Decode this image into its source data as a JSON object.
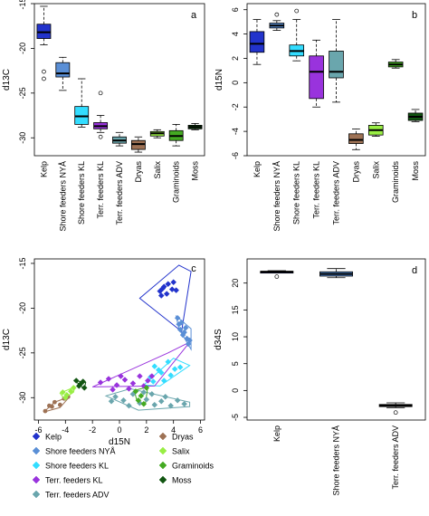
{
  "colors": {
    "Kelp": "#2233cc",
    "Shore feeders NYÅ": "#5a8fd6",
    "Shore feeders KL": "#33ddff",
    "Terr. feeders KL": "#9933dd",
    "Terr. feeders ADV": "#6aa6ad",
    "Dryas": "#9e7255",
    "Salix": "#99ee44",
    "Graminoids": "#44aa22",
    "Moss": "#115511"
  },
  "chart_data": [
    {
      "type": "box",
      "panel_label": "a",
      "ylabel": "d13C",
      "ylim": [
        -32,
        -15
      ],
      "yticks": [
        -30,
        -25,
        -20,
        -15
      ],
      "categories": [
        "Kelp",
        "Shore feeders NYÅ",
        "Shore feeders KL",
        "Terr. feeders KL",
        "Terr. feeders ADV",
        "Dryas",
        "Salix",
        "Graminoids",
        "Moss"
      ],
      "boxes": [
        {
          "min": -19.6,
          "q1": -18.9,
          "median": -18.2,
          "q3": -17.3,
          "max": -15.3,
          "outliers": [
            -22.6,
            -23.4
          ]
        },
        {
          "min": -24.7,
          "q1": -23.2,
          "median": -22.8,
          "q3": -21.6,
          "max": -21.0,
          "outliers": []
        },
        {
          "min": -28.8,
          "q1": -28.5,
          "median": -27.6,
          "q3": -26.5,
          "max": -23.4,
          "outliers": []
        },
        {
          "min": -29.4,
          "q1": -29.0,
          "median": -28.7,
          "q3": -28.3,
          "max": -27.5,
          "outliers": [
            -25.0,
            -29.9
          ]
        },
        {
          "min": -30.9,
          "q1": -30.6,
          "median": -30.3,
          "q3": -29.9,
          "max": -29.4,
          "outliers": []
        },
        {
          "min": -31.6,
          "q1": -31.3,
          "median": -30.7,
          "q3": -30.3,
          "max": -29.9,
          "outliers": []
        },
        {
          "min": -30.0,
          "q1": -29.8,
          "median": -29.5,
          "q3": -29.3,
          "max": -29.1,
          "outliers": []
        },
        {
          "min": -30.9,
          "q1": -30.3,
          "median": -29.8,
          "q3": -29.2,
          "max": -28.5,
          "outliers": []
        },
        {
          "min": -29.1,
          "q1": -29.0,
          "median": -28.8,
          "q3": -28.6,
          "max": -28.4,
          "outliers": []
        }
      ]
    },
    {
      "type": "box",
      "panel_label": "b",
      "ylabel": "d15N",
      "ylim": [
        -6,
        6.5
      ],
      "yticks": [
        -6,
        -4,
        -2,
        0,
        2,
        4,
        6
      ],
      "categories": [
        "Kelp",
        "Shore feeders NYÅ",
        "Shore feeders KL",
        "Terr. feeders KL",
        "Terr. feeders ADV",
        "Dryas",
        "Salix",
        "Graminoids",
        "Moss"
      ],
      "boxes": [
        {
          "min": 1.5,
          "q1": 2.5,
          "median": 3.2,
          "q3": 4.2,
          "max": 5.2,
          "outliers": []
        },
        {
          "min": 4.3,
          "q1": 4.5,
          "median": 4.7,
          "q3": 4.9,
          "max": 5.1,
          "outliers": [
            5.6
          ]
        },
        {
          "min": 1.8,
          "q1": 2.2,
          "median": 2.6,
          "q3": 3.1,
          "max": 5.2,
          "outliers": [
            5.9
          ]
        },
        {
          "min": -2.0,
          "q1": -1.3,
          "median": 0.9,
          "q3": 2.2,
          "max": 3.5,
          "outliers": []
        },
        {
          "min": -1.6,
          "q1": 0.4,
          "median": 0.9,
          "q3": 2.6,
          "max": 5.2,
          "outliers": []
        },
        {
          "min": -5.5,
          "q1": -5.0,
          "median": -4.7,
          "q3": -4.2,
          "max": -3.8,
          "outliers": []
        },
        {
          "min": -4.4,
          "q1": -4.3,
          "median": -3.9,
          "q3": -3.5,
          "max": -3.3,
          "outliers": []
        },
        {
          "min": 1.2,
          "q1": 1.3,
          "median": 1.5,
          "q3": 1.7,
          "max": 1.9,
          "outliers": []
        },
        {
          "min": -3.2,
          "q1": -3.1,
          "median": -2.8,
          "q3": -2.5,
          "max": -2.2,
          "outliers": []
        }
      ]
    },
    {
      "type": "scatter",
      "panel_label": "c",
      "xlabel": "d15N",
      "ylabel": "d13C",
      "xlim": [
        -6.3,
        6.3
      ],
      "ylim": [
        -32.5,
        -14.5
      ],
      "xticks": [
        -6,
        -4,
        -2,
        0,
        2,
        4,
        6
      ],
      "yticks": [
        -30,
        -25,
        -20,
        -15
      ],
      "series": [
        {
          "name": "Kelp",
          "marker": "diamond",
          "points": [
            [
              3.0,
              -18.1
            ],
            [
              3.3,
              -17.6
            ],
            [
              3.6,
              -17.3
            ],
            [
              3.9,
              -17.9
            ],
            [
              3.1,
              -18.6
            ],
            [
              3.5,
              -18.4
            ],
            [
              4.0,
              -17.1
            ],
            [
              3.2,
              -17.8
            ],
            [
              4.2,
              -18.0
            ]
          ],
          "hull": [
            [
              4.4,
              -15.2
            ],
            [
              5.3,
              -15.9
            ],
            [
              4.6,
              -22.6
            ],
            [
              1.5,
              -18.9
            ]
          ]
        },
        {
          "name": "Shore feeders NYÅ",
          "marker": "diamond",
          "points": [
            [
              4.3,
              -21.1
            ],
            [
              4.6,
              -21.6
            ],
            [
              4.9,
              -22.2
            ],
            [
              4.7,
              -23.0
            ],
            [
              5.0,
              -23.4
            ],
            [
              4.5,
              -22.4
            ],
            [
              5.1,
              -24.0
            ],
            [
              4.4,
              -21.8
            ],
            [
              4.8,
              -22.7
            ],
            [
              5.2,
              -23.6
            ]
          ],
          "hull": [
            [
              4.2,
              -20.9
            ],
            [
              5.3,
              -22.3
            ],
            [
              5.3,
              -24.6
            ],
            [
              4.4,
              -22.3
            ]
          ]
        },
        {
          "name": "Shore feeders KL",
          "marker": "diamond",
          "points": [
            [
              2.6,
              -26.5
            ],
            [
              3.1,
              -27.2
            ],
            [
              2.3,
              -27.7
            ],
            [
              3.6,
              -26.0
            ],
            [
              4.1,
              -26.8
            ],
            [
              2.9,
              -26.9
            ],
            [
              3.3,
              -28.1
            ],
            [
              4.5,
              -26.6
            ],
            [
              3.8,
              -27.5
            ],
            [
              2.5,
              -28.2
            ]
          ],
          "hull": [
            [
              1.8,
              -28.6
            ],
            [
              4.0,
              -25.6
            ],
            [
              5.2,
              -26.4
            ],
            [
              3.0,
              -28.7
            ]
          ]
        },
        {
          "name": "Terr. feeders KL",
          "marker": "diamond",
          "points": [
            [
              -1.4,
              -28.3
            ],
            [
              -0.8,
              -27.9
            ],
            [
              -0.2,
              -28.6
            ],
            [
              0.4,
              -28.0
            ],
            [
              1.0,
              -28.4
            ],
            [
              1.5,
              -27.6
            ],
            [
              2.1,
              -28.1
            ],
            [
              0.7,
              -29.0
            ],
            [
              -0.5,
              -29.1
            ],
            [
              1.8,
              -28.7
            ],
            [
              2.4,
              -27.6
            ],
            [
              0.1,
              -27.6
            ]
          ],
          "hull": [
            [
              -2.0,
              -28.8
            ],
            [
              3.6,
              -25.0
            ],
            [
              5.2,
              -23.8
            ],
            [
              2.6,
              -28.7
            ]
          ]
        },
        {
          "name": "Terr. feeders ADV",
          "marker": "diamond",
          "points": [
            [
              -0.3,
              -29.9
            ],
            [
              0.3,
              -30.3
            ],
            [
              1.0,
              -29.6
            ],
            [
              1.5,
              -30.6
            ],
            [
              2.0,
              -30.2
            ],
            [
              2.6,
              -30.8
            ],
            [
              3.1,
              -30.4
            ],
            [
              3.8,
              -30.9
            ],
            [
              4.3,
              -30.3
            ],
            [
              4.8,
              -30.7
            ],
            [
              0.7,
              -30.9
            ],
            [
              1.8,
              -29.4
            ],
            [
              2.4,
              -29.6
            ],
            [
              3.4,
              -29.9
            ],
            [
              -0.6,
              -30.4
            ]
          ],
          "hull": [
            [
              -1.0,
              -29.8
            ],
            [
              0.8,
              -29.0
            ],
            [
              5.2,
              -30.5
            ],
            [
              5.2,
              -31.0
            ],
            [
              1.4,
              -31.4
            ]
          ]
        },
        {
          "name": "Dryas",
          "marker": "circle",
          "points": [
            [
              -5.5,
              -31.5
            ],
            [
              -5.0,
              -31.0
            ],
            [
              -4.8,
              -30.5
            ],
            [
              -4.4,
              -30.8
            ],
            [
              -4.1,
              -30.1
            ],
            [
              -3.8,
              -29.9
            ],
            [
              -5.2,
              -30.9
            ]
          ],
          "hull": [
            [
              -5.6,
              -31.6
            ],
            [
              -4.8,
              -30.5
            ],
            [
              -3.7,
              -29.9
            ],
            [
              -4.4,
              -31.1
            ]
          ]
        },
        {
          "name": "Salix",
          "marker": "diamond",
          "points": [
            [
              -4.2,
              -29.4
            ],
            [
              -3.9,
              -29.7
            ],
            [
              -3.6,
              -29.3
            ],
            [
              -3.4,
              -28.9
            ],
            [
              -4.0,
              -30.0
            ]
          ],
          "hull": [
            [
              -4.4,
              -29.5
            ],
            [
              -3.3,
              -28.8
            ],
            [
              -3.4,
              -29.4
            ],
            [
              -4.1,
              -30.1
            ]
          ]
        },
        {
          "name": "Graminoids",
          "marker": "diamond",
          "points": [
            [
              1.2,
              -29.3
            ],
            [
              1.6,
              -29.8
            ],
            [
              2.0,
              -28.9
            ],
            [
              1.4,
              -30.3
            ],
            [
              1.8,
              -30.7
            ]
          ],
          "hull": [
            [
              1.1,
              -29.2
            ],
            [
              2.1,
              -28.8
            ],
            [
              1.9,
              -30.8
            ],
            [
              1.3,
              -30.4
            ]
          ]
        },
        {
          "name": "Moss",
          "marker": "diamond",
          "points": [
            [
              -3.2,
              -28.1
            ],
            [
              -2.9,
              -28.5
            ],
            [
              -2.6,
              -28.9
            ],
            [
              -2.7,
              -28.2
            ],
            [
              -3.0,
              -28.7
            ]
          ],
          "hull": [
            [
              -3.3,
              -28.1
            ],
            [
              -2.5,
              -28.3
            ],
            [
              -2.6,
              -29.0
            ]
          ]
        }
      ]
    },
    {
      "type": "box",
      "panel_label": "d",
      "ylabel": "d34S",
      "ylim": [
        -5.5,
        24.5
      ],
      "yticks": [
        -5,
        0,
        5,
        10,
        15,
        20
      ],
      "categories": [
        "Kelp",
        "Shore feeders NYÅ",
        "Terr. feeders ADV"
      ],
      "boxes": [
        {
          "min": 21.9,
          "q1": 22.0,
          "median": 22.1,
          "q3": 22.2,
          "max": 22.3,
          "outliers": [
            21.2
          ]
        },
        {
          "min": 21.0,
          "q1": 21.3,
          "median": 21.7,
          "q3": 22.1,
          "max": 22.7,
          "outliers": []
        },
        {
          "min": -3.2,
          "q1": -3.0,
          "median": -2.8,
          "q3": -2.6,
          "max": -2.3,
          "outliers": [
            -4.1
          ]
        }
      ]
    }
  ],
  "legend": {
    "items": [
      {
        "label": "Kelp",
        "marker": "diamond"
      },
      {
        "label": "Shore feeders NYÅ",
        "marker": "diamond"
      },
      {
        "label": "Shore feeders KL",
        "marker": "diamond"
      },
      {
        "label": "Terr. feeders KL",
        "marker": "diamond"
      },
      {
        "label": "Terr. feeders ADV",
        "marker": "diamond"
      },
      {
        "label": "Dryas",
        "marker": "circle"
      },
      {
        "label": "Salix",
        "marker": "diamond"
      },
      {
        "label": "Graminoids",
        "marker": "diamond"
      },
      {
        "label": "Moss",
        "marker": "diamond"
      }
    ]
  }
}
